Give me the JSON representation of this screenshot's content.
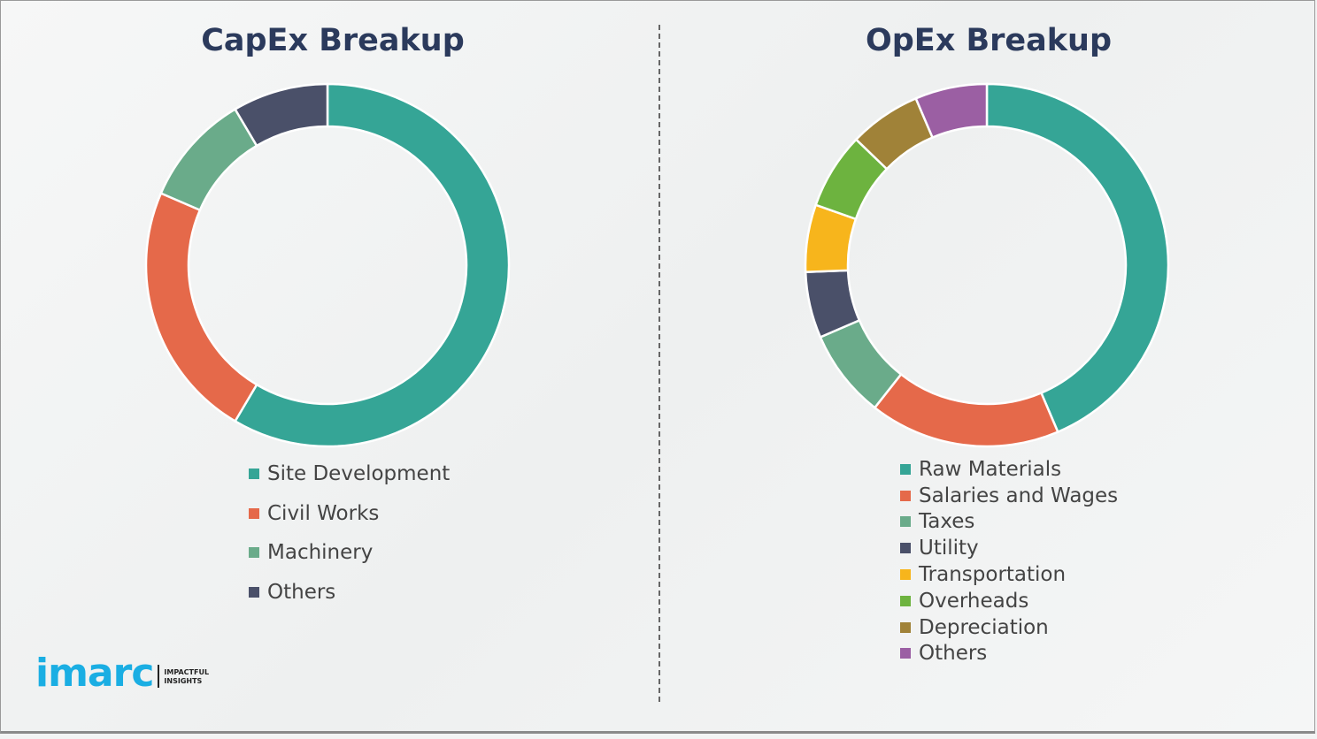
{
  "chart_data": [
    {
      "type": "pie",
      "variant": "donut",
      "title": "CapEx Breakup",
      "legend": "bottom",
      "categories": [
        "Site Development",
        "Civil Works",
        "Machinery",
        "Others"
      ],
      "values": [
        58.5,
        23,
        10,
        8.5
      ],
      "colors": [
        "#35a596",
        "#e5694a",
        "#6aab8a",
        "#4a5069"
      ]
    },
    {
      "type": "pie",
      "variant": "donut",
      "title": "OpEx Breakup",
      "legend": "bottom",
      "categories": [
        "Raw Materials",
        "Salaries and Wages",
        "Taxes",
        "Utility",
        "Transportation",
        "Overheads",
        "Depreciation",
        "Others"
      ],
      "values": [
        43.6,
        17,
        7.9,
        5.9,
        6,
        6.8,
        6.4,
        6.4
      ],
      "colors": [
        "#35a596",
        "#e5694a",
        "#6aab8a",
        "#4a5069",
        "#f7b51c",
        "#6db33f",
        "#a08238",
        "#9b5fa3"
      ]
    }
  ],
  "logo": {
    "word": "imarc",
    "tagline_1": "IMPACTFUL",
    "tagline_2": "INSIGHTS"
  }
}
